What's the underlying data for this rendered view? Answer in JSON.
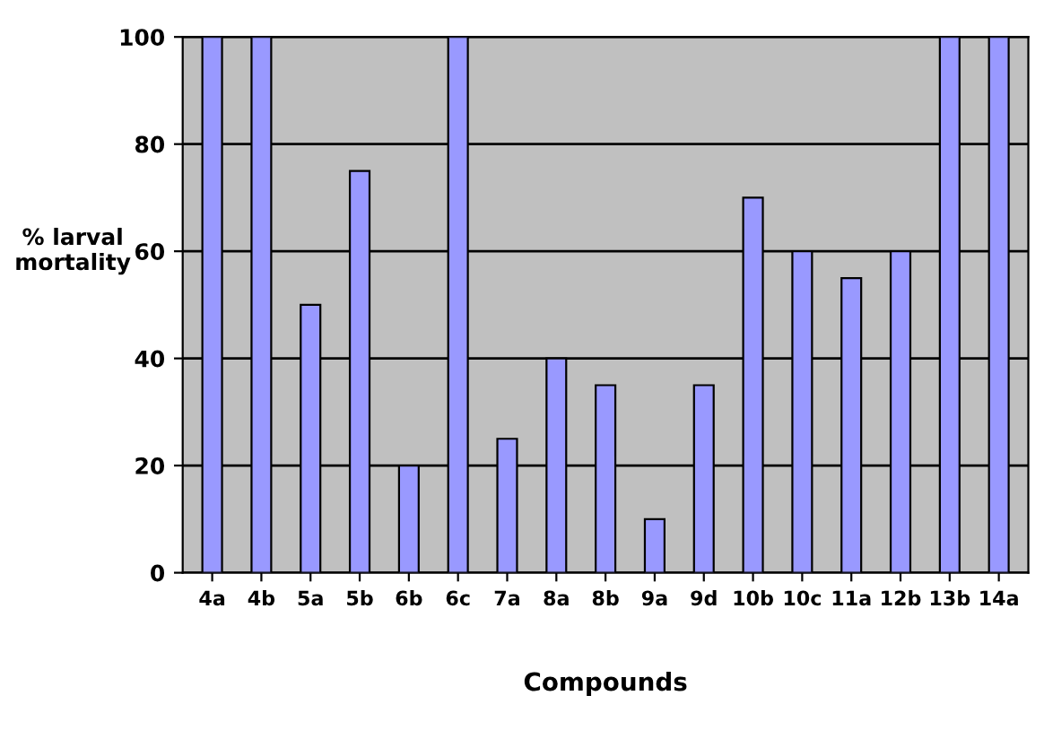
{
  "chart_data": {
    "type": "bar",
    "xlabel": "Compounds",
    "ylabel": "% larval\nmortality",
    "categories": [
      "4a",
      "4b",
      "5a",
      "5b",
      "6b",
      "6c",
      "7a",
      "8a",
      "8b",
      "9a",
      "9d",
      "10b",
      "10c",
      "11a",
      "12b",
      "13b",
      "14a"
    ],
    "values": [
      100,
      100,
      50,
      75,
      20,
      100,
      25,
      40,
      35,
      10,
      35,
      70,
      60,
      55,
      60,
      100,
      100
    ],
    "color": "#9999ff",
    "ylim": [
      0,
      100
    ],
    "yticks": [
      0,
      20,
      40,
      60,
      80,
      100
    ],
    "grid": "y"
  }
}
